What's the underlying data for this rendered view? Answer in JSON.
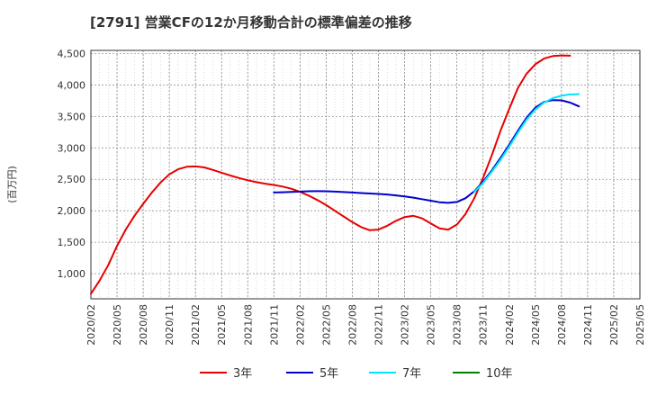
{
  "chart_data": {
    "type": "line",
    "title": "[2791]  営業CFの12か月移動合計の標準偏差の推移",
    "ylabel": "(百万円)",
    "xlabel": "",
    "ylim": [
      600,
      4550
    ],
    "yticks": [
      1000,
      1500,
      2000,
      2500,
      3000,
      3500,
      4000,
      4500
    ],
    "ytick_labels": [
      "1,000",
      "1,500",
      "2,000",
      "2,500",
      "3,000",
      "3,500",
      "4,000",
      "4,500"
    ],
    "xticks": [
      "2020/02",
      "2020/05",
      "2020/08",
      "2020/11",
      "2021/02",
      "2021/05",
      "2021/08",
      "2021/11",
      "2022/02",
      "2022/05",
      "2022/08",
      "2022/11",
      "2023/02",
      "2023/05",
      "2023/08",
      "2023/11",
      "2024/02",
      "2024/05",
      "2024/08",
      "2024/11",
      "2025/02",
      "2025/05"
    ],
    "grid": true,
    "legend": "bottom",
    "series": [
      {
        "name": "3年",
        "color": "#e60000",
        "points": [
          [
            "2020/02",
            680
          ],
          [
            "2020/03",
            890
          ],
          [
            "2020/04",
            1140
          ],
          [
            "2020/05",
            1440
          ],
          [
            "2020/06",
            1700
          ],
          [
            "2020/07",
            1920
          ],
          [
            "2020/08",
            2110
          ],
          [
            "2020/09",
            2290
          ],
          [
            "2020/10",
            2450
          ],
          [
            "2020/11",
            2580
          ],
          [
            "2020/12",
            2660
          ],
          [
            "2021/01",
            2700
          ],
          [
            "2021/02",
            2705
          ],
          [
            "2021/03",
            2690
          ],
          [
            "2021/04",
            2650
          ],
          [
            "2021/05",
            2605
          ],
          [
            "2021/06",
            2560
          ],
          [
            "2021/07",
            2520
          ],
          [
            "2021/08",
            2485
          ],
          [
            "2021/09",
            2455
          ],
          [
            "2021/10",
            2430
          ],
          [
            "2021/11",
            2410
          ],
          [
            "2021/12",
            2385
          ],
          [
            "2022/01",
            2350
          ],
          [
            "2022/02",
            2300
          ],
          [
            "2022/03",
            2240
          ],
          [
            "2022/04",
            2170
          ],
          [
            "2022/05",
            2090
          ],
          [
            "2022/06",
            2000
          ],
          [
            "2022/07",
            1910
          ],
          [
            "2022/08",
            1820
          ],
          [
            "2022/09",
            1740
          ],
          [
            "2022/10",
            1690
          ],
          [
            "2022/11",
            1700
          ],
          [
            "2022/12",
            1760
          ],
          [
            "2023/01",
            1840
          ],
          [
            "2023/02",
            1900
          ],
          [
            "2023/03",
            1920
          ],
          [
            "2023/04",
            1880
          ],
          [
            "2023/05",
            1800
          ],
          [
            "2023/06",
            1720
          ],
          [
            "2023/07",
            1700
          ],
          [
            "2023/08",
            1780
          ],
          [
            "2023/09",
            1950
          ],
          [
            "2023/10",
            2200
          ],
          [
            "2023/11",
            2520
          ],
          [
            "2023/12",
            2880
          ],
          [
            "2024/01",
            3270
          ],
          [
            "2024/02",
            3620
          ],
          [
            "2024/03",
            3950
          ],
          [
            "2024/04",
            4180
          ],
          [
            "2024/05",
            4330
          ],
          [
            "2024/06",
            4420
          ],
          [
            "2024/07",
            4460
          ],
          [
            "2024/08",
            4470
          ],
          [
            "2024/09",
            4465
          ]
        ]
      },
      {
        "name": "5年",
        "color": "#0000cc",
        "points": [
          [
            "2021/11",
            2290
          ],
          [
            "2021/12",
            2295
          ],
          [
            "2022/01",
            2300
          ],
          [
            "2022/02",
            2305
          ],
          [
            "2022/03",
            2310
          ],
          [
            "2022/04",
            2312
          ],
          [
            "2022/05",
            2310
          ],
          [
            "2022/06",
            2305
          ],
          [
            "2022/07",
            2298
          ],
          [
            "2022/08",
            2290
          ],
          [
            "2022/09",
            2282
          ],
          [
            "2022/10",
            2275
          ],
          [
            "2022/11",
            2268
          ],
          [
            "2022/12",
            2258
          ],
          [
            "2023/01",
            2245
          ],
          [
            "2023/02",
            2228
          ],
          [
            "2023/03",
            2208
          ],
          [
            "2023/04",
            2185
          ],
          [
            "2023/05",
            2160
          ],
          [
            "2023/06",
            2135
          ],
          [
            "2023/07",
            2125
          ],
          [
            "2023/08",
            2140
          ],
          [
            "2023/09",
            2200
          ],
          [
            "2023/10",
            2310
          ],
          [
            "2023/11",
            2460
          ],
          [
            "2023/12",
            2640
          ],
          [
            "2024/01",
            2840
          ],
          [
            "2024/02",
            3050
          ],
          [
            "2024/03",
            3270
          ],
          [
            "2024/04",
            3480
          ],
          [
            "2024/05",
            3640
          ],
          [
            "2024/06",
            3730
          ],
          [
            "2024/07",
            3760
          ],
          [
            "2024/08",
            3755
          ],
          [
            "2024/09",
            3720
          ],
          [
            "2024/10",
            3660
          ]
        ]
      },
      {
        "name": "7年",
        "color": "#00e5ff",
        "points": [
          [
            "2023/10",
            2300
          ],
          [
            "2023/11",
            2440
          ],
          [
            "2023/12",
            2620
          ],
          [
            "2024/01",
            2810
          ],
          [
            "2024/02",
            3020
          ],
          [
            "2024/03",
            3240
          ],
          [
            "2024/04",
            3450
          ],
          [
            "2024/05",
            3610
          ],
          [
            "2024/06",
            3720
          ],
          [
            "2024/07",
            3790
          ],
          [
            "2024/08",
            3830
          ],
          [
            "2024/09",
            3850
          ],
          [
            "2024/10",
            3855
          ]
        ]
      },
      {
        "name": "10年",
        "color": "#008000",
        "points": []
      }
    ]
  }
}
